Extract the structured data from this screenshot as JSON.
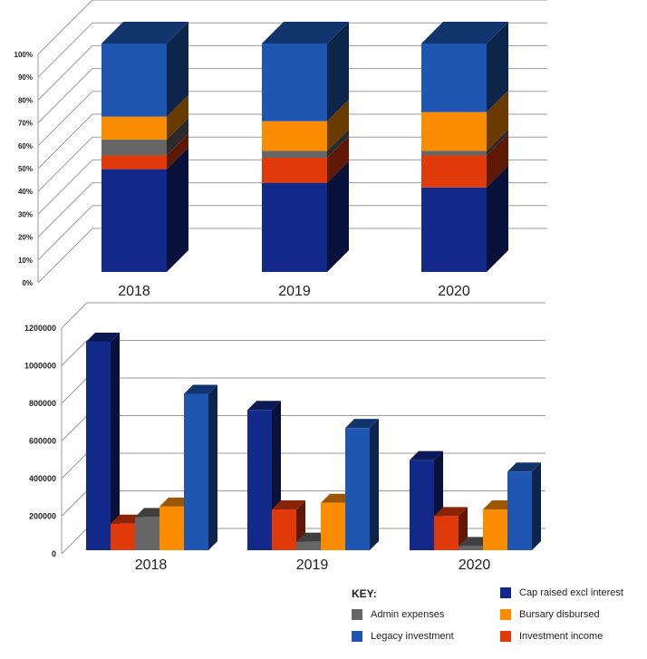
{
  "colors": {
    "Cap raised excl interest": "#13298a",
    "Admin expenses": "#666666",
    "Bursary disbursed": "#fb8c00",
    "Investment income": "#e03a0a",
    "Legacy investment": "#1f56b2"
  },
  "chart_data": [
    {
      "type": "bar",
      "stacked": true,
      "normalized": true,
      "three_d": true,
      "categories": [
        "2018",
        "2019",
        "2020"
      ],
      "series": [
        {
          "name": "Cap raised excl interest",
          "values": [
            45,
            39,
            37
          ]
        },
        {
          "name": "Investment income",
          "values": [
            6,
            11,
            14
          ]
        },
        {
          "name": "Admin expenses",
          "values": [
            7,
            3,
            2
          ]
        },
        {
          "name": "Bursary disbursed",
          "values": [
            10,
            13,
            17
          ]
        },
        {
          "name": "Legacy investment",
          "values": [
            32,
            34,
            30
          ]
        }
      ],
      "y_ticks": [
        "0%",
        "10%",
        "20%",
        "30%",
        "40%",
        "50%",
        "60%",
        "70%",
        "80%",
        "90%",
        "100%"
      ],
      "ylim": [
        0,
        100
      ],
      "grid": true
    },
    {
      "type": "bar",
      "stacked": false,
      "three_d": true,
      "categories": [
        "2018",
        "2019",
        "2020"
      ],
      "series": [
        {
          "name": "Cap raised excl interest",
          "values": [
            1100000,
            740000,
            475000
          ]
        },
        {
          "name": "Investment income",
          "values": [
            140000,
            215000,
            180000
          ]
        },
        {
          "name": "Admin expenses",
          "values": [
            175000,
            45000,
            22000
          ]
        },
        {
          "name": "Bursary disbursed",
          "values": [
            230000,
            250000,
            215000
          ]
        },
        {
          "name": "Legacy investment",
          "values": [
            825000,
            645000,
            415000
          ]
        }
      ],
      "y_ticks": [
        "0",
        "200000",
        "400000",
        "600000",
        "800000",
        "1000000",
        "1200000"
      ],
      "ylim": [
        0,
        1200000
      ],
      "grid": true
    }
  ],
  "legend": {
    "title": "KEY:",
    "items": [
      {
        "label": "Cap raised excl interest",
        "color": "#13298a"
      },
      {
        "label": "Admin expenses",
        "color": "#666666"
      },
      {
        "label": "Bursary disbursed",
        "color": "#fb8c00"
      },
      {
        "label": "Legacy investment",
        "color": "#1f56b2"
      },
      {
        "label": "Investment income",
        "color": "#e03a0a"
      }
    ]
  }
}
